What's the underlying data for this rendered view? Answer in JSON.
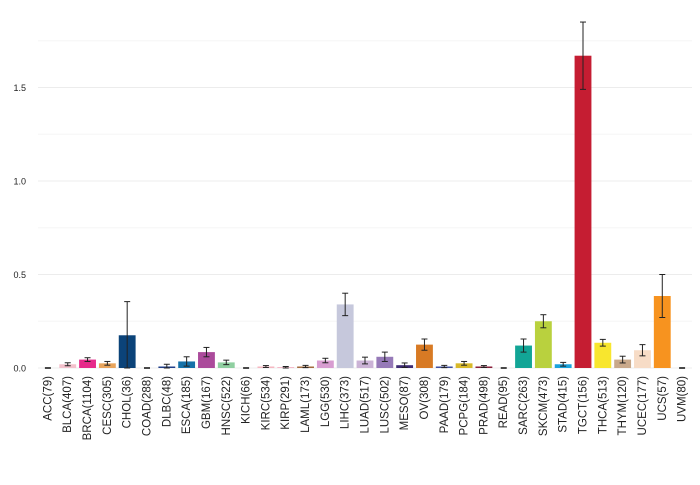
{
  "chart_data": {
    "type": "bar",
    "title": "",
    "xlabel": "",
    "ylabel": "",
    "ylim": [
      0,
      1.9
    ],
    "yticks": [
      0.0,
      0.5,
      1.0,
      1.5
    ],
    "ytick_labels": [
      "0.0",
      "0.5",
      "1.0",
      "1.5"
    ],
    "grid": "horizontal",
    "legend": "none",
    "categories": [
      "ACC(79)",
      "BLCA(407)",
      "BRCA(1104)",
      "CESC(305)",
      "CHOL(36)",
      "COAD(288)",
      "DLBC(48)",
      "ESCA(185)",
      "GBM(167)",
      "HNSC(522)",
      "KICH(66)",
      "KIRC(534)",
      "KIRP(291)",
      "LAML(173)",
      "LGG(530)",
      "LIHC(373)",
      "LUAD(517)",
      "LUSC(502)",
      "MESO(87)",
      "OV(308)",
      "PAAD(179)",
      "PCPG(184)",
      "PRAD(498)",
      "READ(95)",
      "SARC(263)",
      "SKCM(473)",
      "STAD(415)",
      "TGCT(156)",
      "THCA(513)",
      "THYM(120)",
      "UCEC(177)",
      "UCS(57)",
      "UVM(80)"
    ],
    "values": [
      0.0,
      0.02,
      0.045,
      0.025,
      0.175,
      0.0,
      0.008,
      0.035,
      0.085,
      0.03,
      0.0,
      0.008,
      0.004,
      0.008,
      0.04,
      0.34,
      0.04,
      0.06,
      0.015,
      0.125,
      0.008,
      0.025,
      0.008,
      0.0,
      0.12,
      0.25,
      0.02,
      1.67,
      0.135,
      0.045,
      0.095,
      0.385,
      0.0
    ],
    "errors": [
      0.0,
      0.008,
      0.01,
      0.01,
      0.18,
      0.0,
      0.012,
      0.025,
      0.025,
      0.012,
      0.0,
      0.005,
      0.004,
      0.006,
      0.012,
      0.06,
      0.018,
      0.025,
      0.012,
      0.03,
      0.006,
      0.01,
      0.005,
      0.0,
      0.035,
      0.035,
      0.01,
      0.18,
      0.018,
      0.018,
      0.03,
      0.115,
      0.0
    ],
    "colors": [
      "#1a1a1a",
      "#f4c1cc",
      "#e62a8a",
      "#e8a45c",
      "#0b4379",
      "#1a1a1a",
      "#213f8a",
      "#1571a8",
      "#ab4b9b",
      "#8fcfa0",
      "#1a1a1a",
      "#f6b7c1",
      "#f0a2b8",
      "#a36b3d",
      "#d89dd1",
      "#c6c8dc",
      "#cbb3d6",
      "#967ab8",
      "#3d2a72",
      "#d87a24",
      "#3f50a2",
      "#d8b92a",
      "#8a1f3b",
      "#1a1a1a",
      "#12a596",
      "#b9d13e",
      "#1aa3dc",
      "#c51d32",
      "#f8e62e",
      "#c9a98b",
      "#f7dcc6",
      "#f7931f",
      "#1a1a1a"
    ]
  }
}
